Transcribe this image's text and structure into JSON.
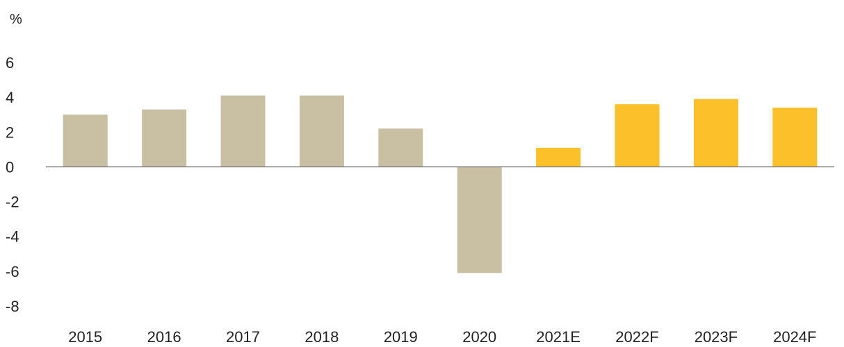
{
  "chart_data": {
    "type": "bar",
    "unit_label": "%",
    "categories": [
      "2015",
      "2016",
      "2017",
      "2018",
      "2019",
      "2020",
      "2021E",
      "2022F",
      "2023F",
      "2024F"
    ],
    "values": [
      3.0,
      3.3,
      4.1,
      4.1,
      2.2,
      -6.1,
      1.1,
      3.6,
      3.9,
      3.4
    ],
    "bar_kind": [
      "actual",
      "actual",
      "actual",
      "actual",
      "actual",
      "actual",
      "forecast",
      "forecast",
      "forecast",
      "forecast"
    ],
    "colors": {
      "actual": "#c9bfa3",
      "forecast": "#fcc12a",
      "axis": "#7f7f7f"
    },
    "yticks": [
      6,
      4,
      2,
      0,
      -2,
      -4,
      -6,
      -8
    ],
    "ylim": [
      -8,
      6
    ],
    "grid": false,
    "legend": "none"
  }
}
